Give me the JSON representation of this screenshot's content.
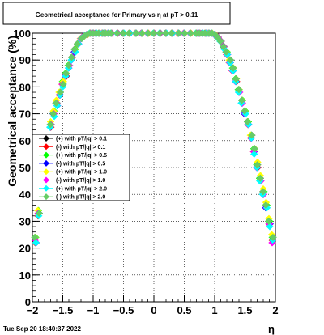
{
  "chart_data": {
    "type": "scatter",
    "title": "Geometrical acceptance for Primary vs  η at pT > 0.11",
    "xlabel": "η",
    "ylabel": "Geometrical acceptance (%)",
    "xlim": [
      -2,
      2
    ],
    "ylim": [
      0,
      100
    ],
    "x_ticks": [
      -2,
      -1.5,
      -1,
      -0.5,
      0,
      0.5,
      1,
      1.5,
      2
    ],
    "x_tick_labels": [
      "−2",
      "−1.5",
      "−1",
      "−0.5",
      "0",
      "0.5",
      "1",
      "1.5",
      "2"
    ],
    "y_ticks": [
      0,
      10,
      20,
      30,
      40,
      50,
      60,
      70,
      80,
      90,
      100
    ],
    "y_tick_labels": [
      "0",
      "10",
      "20",
      "30",
      "40",
      "50",
      "60",
      "70",
      "80",
      "90",
      "100"
    ],
    "grid": true,
    "legend_position": "left-middle",
    "timestamp": "Tue Sep 20 18:40:37 2022",
    "x": [
      -1.95,
      -1.9,
      -1.85,
      -1.8,
      -1.75,
      -1.7,
      -1.65,
      -1.6,
      -1.55,
      -1.5,
      -1.45,
      -1.4,
      -1.35,
      -1.3,
      -1.25,
      -1.2,
      -1.15,
      -1.1,
      -1.05,
      -1.0,
      -0.95,
      -0.9,
      -0.85,
      -0.8,
      -0.75,
      -0.7,
      -0.6,
      -0.5,
      -0.4,
      -0.3,
      -0.2,
      -0.1,
      0.0,
      0.1,
      0.2,
      0.3,
      0.4,
      0.5,
      0.6,
      0.7,
      0.75,
      0.8,
      0.85,
      0.9,
      0.95,
      1.0,
      1.05,
      1.1,
      1.15,
      1.2,
      1.25,
      1.3,
      1.35,
      1.4,
      1.45,
      1.5,
      1.55,
      1.6,
      1.65,
      1.7,
      1.75,
      1.8,
      1.85,
      1.9,
      1.95
    ],
    "series": [
      {
        "name": "(+) with pT/|q| > 0.1",
        "color": "#000000",
        "values": [
          23,
          33,
          43,
          52,
          60,
          66,
          70,
          74,
          78,
          81,
          85,
          88,
          91,
          94,
          96,
          98,
          99,
          99.5,
          100,
          100,
          100,
          100,
          100,
          100,
          100,
          100,
          100,
          100,
          100,
          100,
          100,
          100,
          100,
          100,
          100,
          100,
          100,
          100,
          100,
          100,
          100,
          100,
          100,
          100,
          100,
          99.5,
          98.5,
          97,
          95,
          93,
          90,
          87,
          83,
          79,
          75,
          71,
          67,
          62,
          57,
          51,
          46,
          41,
          36,
          30,
          24
        ]
      },
      {
        "name": "(-) with pT/|q| > 0.1",
        "color": "#ff0000",
        "values": [
          22,
          32,
          42,
          51,
          59,
          65,
          70,
          74,
          77,
          81,
          84,
          88,
          91,
          93,
          96,
          98,
          99,
          99.5,
          100,
          100,
          100,
          100,
          100,
          100,
          100,
          100,
          100,
          100,
          100,
          100,
          100,
          100,
          100,
          100,
          100,
          100,
          100,
          100,
          100,
          100,
          100,
          100,
          100,
          100,
          100,
          99.5,
          98.5,
          97,
          95,
          92,
          89,
          86,
          82,
          78,
          74,
          70,
          66,
          61,
          56,
          50,
          45,
          40,
          35,
          29,
          23
        ]
      },
      {
        "name": "(+) with pT/|q| > 0.5",
        "color": "#00ff00",
        "values": [
          24,
          34,
          44,
          53,
          60,
          66,
          71,
          74,
          78,
          82,
          85,
          88,
          91,
          94,
          96,
          98,
          99,
          99.5,
          100,
          100,
          100,
          100,
          100,
          100,
          100,
          100,
          100,
          100,
          100,
          100,
          100,
          100,
          100,
          100,
          100,
          100,
          100,
          100,
          100,
          100,
          100,
          100,
          100,
          100,
          100,
          99.5,
          98.5,
          97,
          95,
          93,
          90,
          87,
          83,
          79,
          75,
          71,
          67,
          62,
          57,
          51,
          46,
          41,
          36,
          30,
          24
        ]
      },
      {
        "name": "(-) with pT/|q| > 0.5",
        "color": "#0000ff",
        "values": [
          22,
          33,
          43,
          52,
          59,
          65,
          70,
          73,
          77,
          81,
          84,
          87,
          90,
          93,
          96,
          98,
          99,
          99.5,
          100,
          100,
          100,
          100,
          100,
          100,
          100,
          100,
          100,
          100,
          100,
          100,
          100,
          100,
          100,
          100,
          100,
          100,
          100,
          100,
          100,
          100,
          100,
          100,
          100,
          100,
          100,
          99.5,
          98.5,
          97,
          95,
          92,
          89,
          86,
          82,
          78,
          74,
          70,
          66,
          61,
          56,
          50,
          45,
          40,
          35,
          29,
          23
        ]
      },
      {
        "name": "(+) with pT/|q| > 1.0",
        "color": "#ffff00",
        "values": [
          24,
          34,
          44,
          53,
          61,
          67,
          71,
          75,
          78,
          82,
          85,
          88,
          91,
          94,
          96,
          98,
          99,
          99.5,
          100,
          100,
          100,
          100,
          100,
          100,
          100,
          100,
          100,
          100,
          100,
          100,
          100,
          100,
          100,
          100,
          100,
          100,
          100,
          100,
          100,
          100,
          100,
          100,
          100,
          100,
          100,
          99.5,
          98.5,
          97,
          95,
          93,
          90,
          87,
          83,
          79,
          75,
          71,
          67,
          62,
          57,
          52,
          47,
          42,
          37,
          31,
          25
        ]
      },
      {
        "name": "(-) with pT/|q| > 1.0",
        "color": "#ff00ff",
        "values": [
          23,
          33,
          43,
          52,
          60,
          66,
          70,
          74,
          77,
          81,
          84,
          88,
          91,
          93,
          96,
          98,
          99,
          99.5,
          100,
          100,
          100,
          100,
          100,
          100,
          100,
          100,
          100,
          100,
          100,
          100,
          100,
          100,
          100,
          100,
          100,
          100,
          100,
          100,
          100,
          100,
          100,
          100,
          100,
          100,
          100,
          99.5,
          98.5,
          97,
          95,
          92,
          89,
          86,
          82,
          78,
          74,
          70,
          66,
          61,
          56,
          50,
          45,
          40,
          35,
          29,
          22
        ]
      },
      {
        "name": "(+) with pT/|q| > 2.0",
        "color": "#00ffff",
        "values": [
          22,
          32,
          42,
          51,
          59,
          65,
          69,
          73,
          77,
          80,
          84,
          87,
          90,
          93,
          96,
          98,
          99,
          99.5,
          100,
          100,
          100,
          100,
          100,
          100,
          100,
          100,
          100,
          100,
          100,
          100,
          100,
          100,
          100,
          100,
          100,
          100,
          100,
          100,
          100,
          100,
          100,
          100,
          100,
          100,
          100,
          99.5,
          98.5,
          97,
          94,
          92,
          89,
          86,
          82,
          78,
          74,
          70,
          66,
          61,
          55,
          50,
          45,
          40,
          35,
          28,
          23
        ]
      },
      {
        "name": "(-) with pT/|q| > 2.0",
        "color": "#66cc66",
        "values": [
          24,
          33,
          43,
          52,
          60,
          66,
          70,
          74,
          78,
          81,
          85,
          88,
          91,
          94,
          96,
          98,
          99,
          99.5,
          100,
          100,
          100,
          100,
          100,
          100,
          100,
          100,
          100,
          100,
          100,
          100,
          100,
          100,
          100,
          100,
          100,
          100,
          100,
          100,
          100,
          100,
          100,
          100,
          100,
          100,
          100,
          99.5,
          98.5,
          97,
          95,
          93,
          90,
          87,
          83,
          79,
          75,
          71,
          67,
          62,
          57,
          51,
          46,
          41,
          36,
          30,
          24
        ]
      }
    ]
  }
}
